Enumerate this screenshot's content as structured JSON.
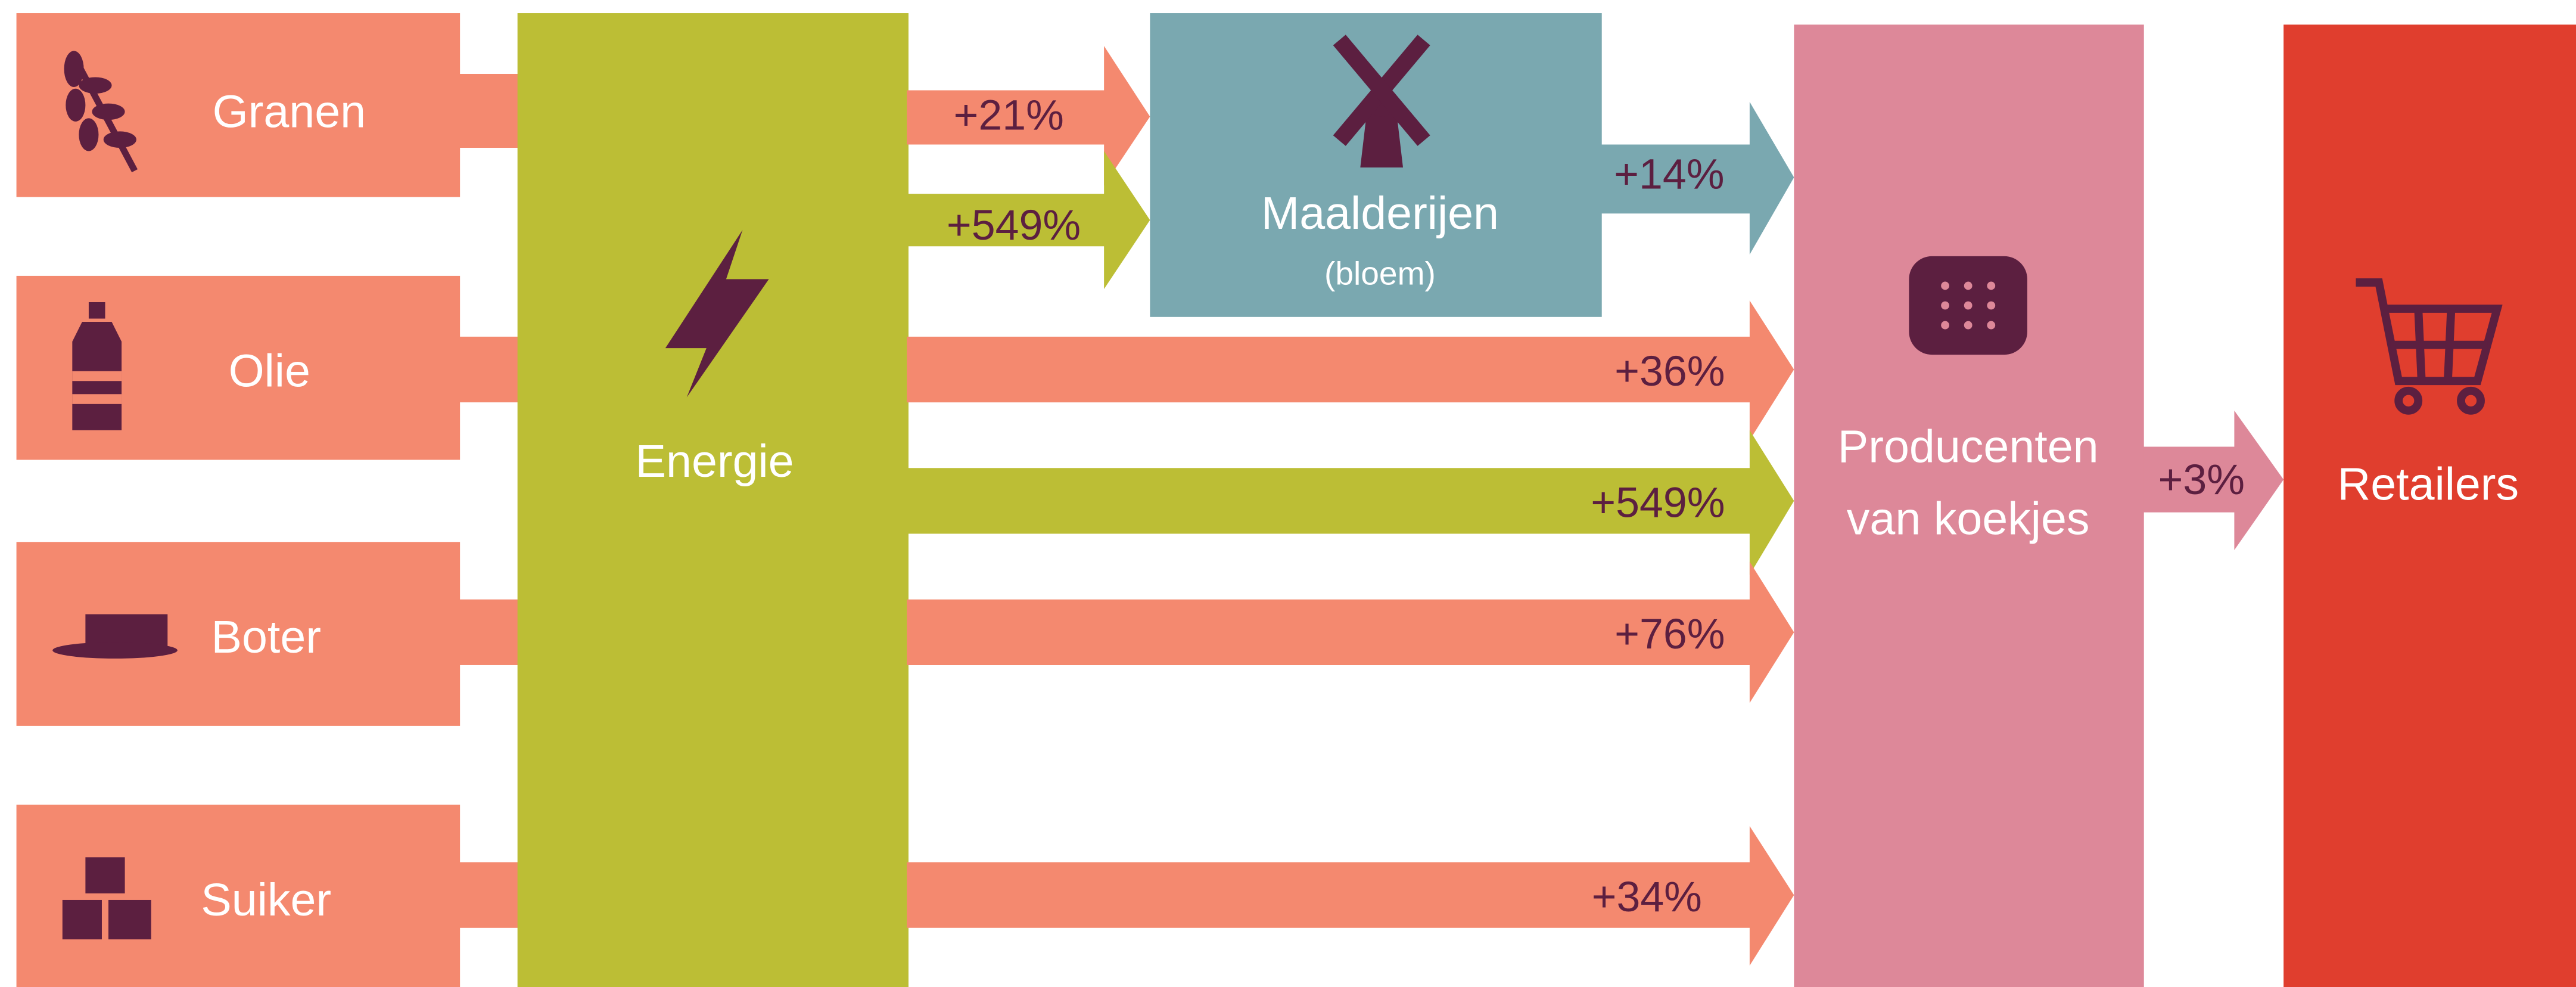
{
  "sources": [
    "Granen",
    "Olie",
    "Boter",
    "Suiker"
  ],
  "energy": "Energie",
  "mill": {
    "title": "Maalderijen",
    "subtitle": "(bloem)"
  },
  "producers": {
    "line1": "Producenten",
    "line2": "van koekjes"
  },
  "retailers": "Retailers",
  "flows": {
    "grains_to_mill": "+21%",
    "energy_to_mill": "+549%",
    "mill_to_producers": "+14%",
    "oil": "+36%",
    "energy": "+549%",
    "butter": "+76%",
    "sugar": "+34%",
    "producers_to_retailers": "+3%"
  }
}
